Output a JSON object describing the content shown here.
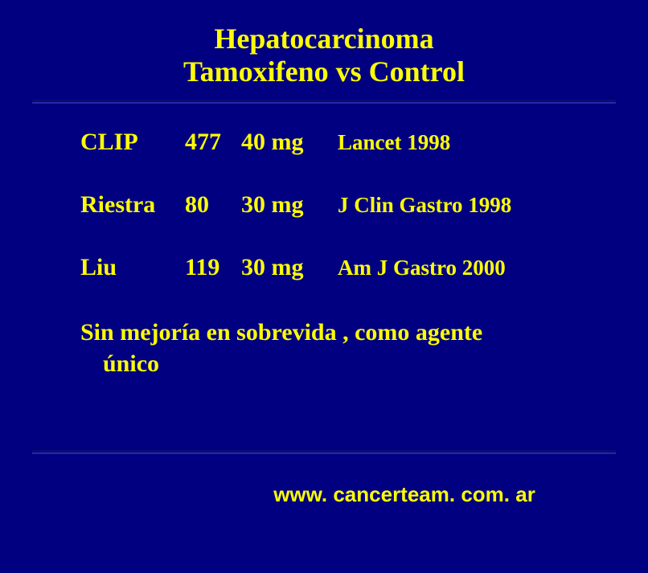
{
  "title_line1": "Hepatocarcinoma",
  "title_line2": "Tamoxifeno vs Control",
  "rows": [
    {
      "name": "CLIP",
      "n": "477",
      "dose": "40 mg",
      "source": "Lancet 1998"
    },
    {
      "name": "Riestra",
      "n": "80",
      "dose": "30 mg",
      "source": "J Clin Gastro 1998"
    },
    {
      "name": "Liu",
      "n": "119",
      "dose": "30 mg",
      "source": "Am J Gastro 2000"
    }
  ],
  "summary_line1": "Sin mejoría en sobrevida , como agente",
  "summary_line2": "único",
  "footer": "www. cancerteam. com. ar",
  "colors": {
    "background": "#000080",
    "text": "#fcfc04"
  }
}
